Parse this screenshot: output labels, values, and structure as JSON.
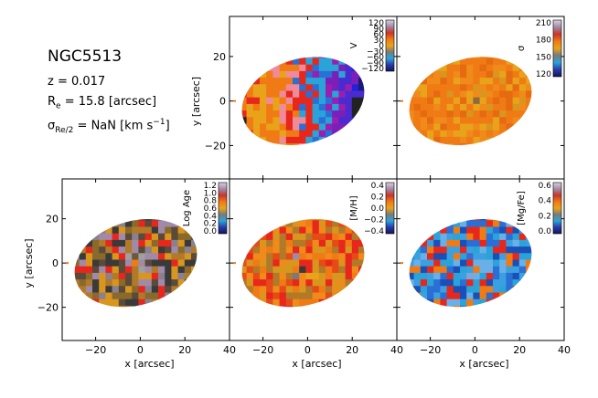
{
  "galaxy": {
    "name": "NGC5513",
    "redshift_label": "z = 0.017",
    "re_prefix": "R",
    "re_sub": "e",
    "re_value": " = 15.8 [arcsec]",
    "sigma_prefix": "σ",
    "sigma_sub": "Re/2",
    "sigma_value": " = NaN [km s",
    "sigma_exp": "−1",
    "sigma_close": "]"
  },
  "colors": {
    "red": "#e8271c",
    "orange": "#f07a14",
    "amber": "#e9a31a",
    "dark": "#222222",
    "blue": "#2222dd",
    "cyan": "#2aa4d8"
  },
  "chart_data": [
    {
      "type": "heatmap",
      "panel": "velocity",
      "label": "V",
      "cbar_ticks": [
        "120",
        "90",
        "60",
        "30",
        "0",
        "−30",
        "−60",
        "−90",
        "−120"
      ],
      "cbar_range": [
        -120,
        120
      ],
      "yticks": [
        "20",
        "0",
        "−20"
      ],
      "ylabel": "y [arcsec]",
      "xticks": [],
      "xlabel": "",
      "xlim": [
        -35,
        40
      ],
      "ylim": [
        -35,
        38
      ]
    },
    {
      "type": "heatmap",
      "panel": "dispersion",
      "label": "σ",
      "cbar_ticks": [
        "210",
        "180",
        "150",
        "120"
      ],
      "cbar_range": [
        105,
        220
      ],
      "yticks": [],
      "ylabel": "",
      "xticks": [],
      "xlabel": "",
      "xlim": [
        -35,
        40
      ],
      "ylim": [
        -35,
        38
      ]
    },
    {
      "type": "heatmap",
      "panel": "log-age",
      "label": "Log Age",
      "cbar_ticks": [
        "1.2",
        "1.0",
        "0.8",
        "0.6",
        "0.4",
        "0.2",
        "0.0"
      ],
      "cbar_range": [
        -0.05,
        1.3
      ],
      "yticks": [
        "20",
        "0",
        "−20"
      ],
      "ylabel": "y [arcsec]",
      "xticks": [
        "−20",
        "0",
        "20",
        "40"
      ],
      "xlabel": "x [arcsec]",
      "xlim": [
        -35,
        40
      ],
      "ylim": [
        -35,
        38
      ]
    },
    {
      "type": "heatmap",
      "panel": "metallicity",
      "label": "[M/H]",
      "cbar_ticks": [
        "0.4",
        "0.2",
        "0.0",
        "−0.2",
        "−0.4"
      ],
      "cbar_range": [
        -0.5,
        0.45
      ],
      "yticks": [],
      "ylabel": "",
      "xticks": [
        "−20",
        "0",
        "20",
        "40"
      ],
      "xlabel": "x [arcsec]",
      "xlim": [
        -35,
        40
      ],
      "ylim": [
        -35,
        38
      ]
    },
    {
      "type": "heatmap",
      "panel": "alpha-fe",
      "label": "[Mg/Fe]",
      "cbar_ticks": [
        "0.6",
        "0.4",
        "0.2",
        "0.0"
      ],
      "cbar_range": [
        -0.05,
        0.65
      ],
      "yticks": [],
      "ylabel": "",
      "xticks": [
        "−20",
        "0",
        "20",
        "40"
      ],
      "xlabel": "x [arcsec]",
      "xlim": [
        -35,
        40
      ],
      "ylim": [
        -35,
        38
      ]
    }
  ]
}
